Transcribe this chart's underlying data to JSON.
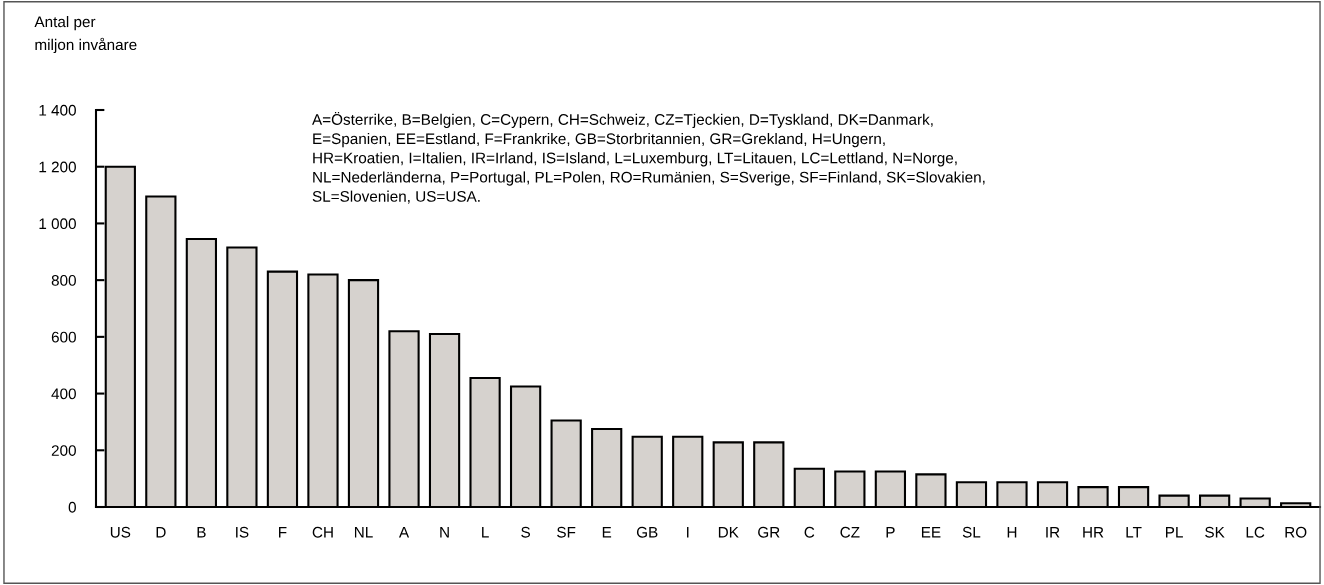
{
  "chart_data": {
    "type": "bar",
    "ylabel": "Antal per\nmiljon invånare",
    "categories": [
      "US",
      "D",
      "B",
      "IS",
      "F",
      "CH",
      "NL",
      "A",
      "N",
      "L",
      "S",
      "SF",
      "E",
      "GB",
      "I",
      "DK",
      "GR",
      "C",
      "CZ",
      "P",
      "EE",
      "SL",
      "H",
      "IR",
      "HR",
      "LT",
      "PL",
      "SK",
      "LC",
      "RO"
    ],
    "values": [
      1200,
      1095,
      945,
      915,
      830,
      820,
      800,
      620,
      610,
      455,
      425,
      305,
      275,
      248,
      248,
      228,
      228,
      135,
      125,
      125,
      115,
      87,
      87,
      87,
      70,
      70,
      40,
      40,
      30,
      13
    ],
    "color": "#d6d2ce",
    "ylim": [
      0,
      1400
    ],
    "yticks": [
      0,
      {
        "value": 200,
        "label": "200"
      },
      {
        "value": 400,
        "label": "400"
      },
      {
        "value": 600,
        "label": "600"
      },
      {
        "value": 800,
        "label": "800"
      },
      {
        "value": 1000,
        "label": "1 000"
      },
      {
        "value": 1200,
        "label": "1 200"
      },
      {
        "value": 1400,
        "label": "1 400"
      }
    ],
    "grid": false,
    "legend": false,
    "annotations": [
      "A=Österrike, B=Belgien, C=Cypern, CH=Schweiz, CZ=Tjeckien, D=Tyskland, DK=Danmark,\nE=Spanien, EE=Estland, F=Frankrike, GB=Storbritannien, GR=Grekland, H=Ungern,\nHR=Kroatien, I=Italien, IR=Irland, IS=Island, L=Luxemburg, LT=Litauen, LC=Lettland, N=Norge,\nNL=Nederländerna, P=Portugal, PL=Polen, RO=Rumänien, S=Sverige, SF=Finland, SK=Slovakien,\nSL=Slovenien, US=USA."
    ]
  }
}
